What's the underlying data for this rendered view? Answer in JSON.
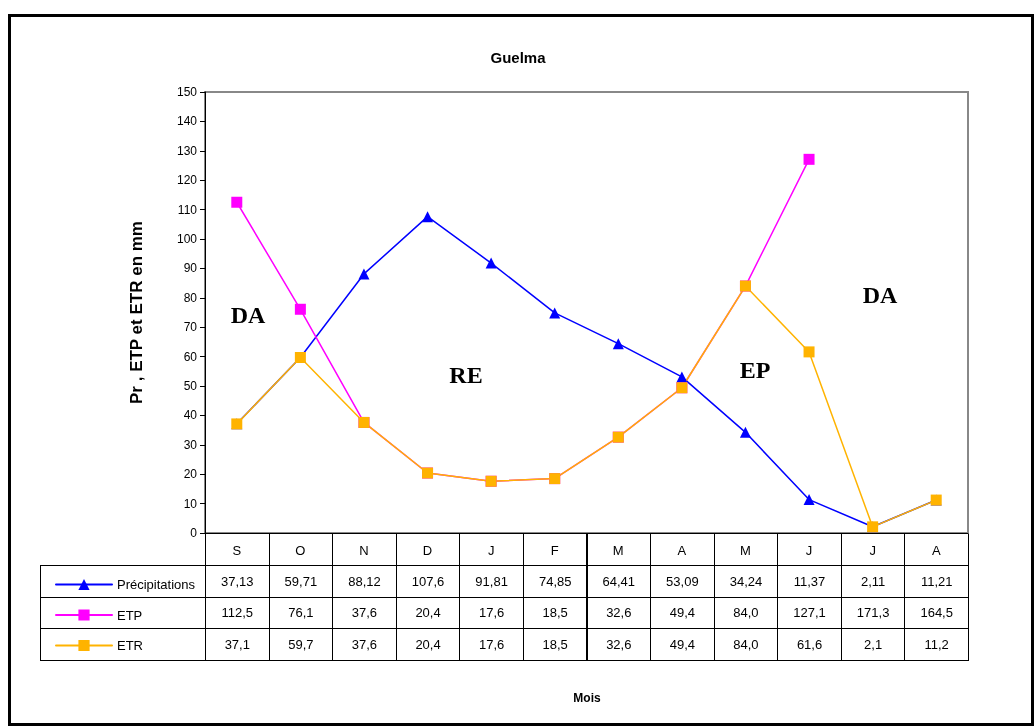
{
  "chart_data": {
    "type": "line",
    "title": "Guelma",
    "ylabel": "Pr , ETP et ETR en mm",
    "categories": [
      "S",
      "O",
      "N",
      "D",
      "J",
      "F",
      "M",
      "A",
      "M",
      "J",
      "J",
      "A"
    ],
    "series": [
      {
        "name": "Précipitations",
        "color": "#0000ff",
        "marker": "triangle",
        "values": [
          37.13,
          59.71,
          88.12,
          107.6,
          91.81,
          74.85,
          64.41,
          53.09,
          34.24,
          11.37,
          2.11,
          11.21
        ],
        "value_labels": [
          "37,13",
          "59,71",
          "88,12",
          "107,6",
          "91,81",
          "74,85",
          "64,41",
          "53,09",
          "34,24",
          "11,37",
          "2,11",
          "11,21"
        ]
      },
      {
        "name": "ETP",
        "color": "#ff00ff",
        "marker": "square",
        "values": [
          112.5,
          76.1,
          37.6,
          20.4,
          17.6,
          18.5,
          32.6,
          49.4,
          84.0,
          127.1,
          null,
          null
        ],
        "value_labels": [
          "112,5",
          "76,1",
          "37,6",
          "20,4",
          "17,6",
          "18,5",
          "32,6",
          "49,4",
          "84,0",
          "127,1",
          "171,3",
          "164,5"
        ]
      },
      {
        "name": "ETR",
        "color": "#ffb300",
        "marker": "square",
        "values": [
          37.1,
          59.7,
          37.6,
          20.4,
          17.6,
          18.5,
          32.6,
          49.4,
          84.0,
          61.6,
          2.1,
          11.2
        ],
        "value_labels": [
          "37,1",
          "59,7",
          "37,6",
          "20,4",
          "17,6",
          "18,5",
          "32,6",
          "49,4",
          "84,0",
          "61,6",
          "2,1",
          "11,2"
        ]
      }
    ],
    "ylim": [
      0,
      150
    ],
    "yticks": [
      0,
      10,
      20,
      30,
      40,
      50,
      60,
      70,
      80,
      90,
      100,
      110,
      120,
      130,
      140,
      150
    ],
    "annotations": [
      "DA",
      "RE",
      "EP",
      "DA",
      "Mois"
    ],
    "grid": false,
    "legend": "bottom left",
    "line_style": "solid"
  }
}
